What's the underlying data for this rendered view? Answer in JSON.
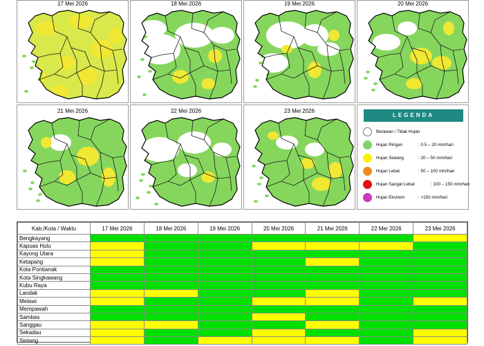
{
  "maps": [
    {
      "date": "17 Mei 2026"
    },
    {
      "date": "18 Mei 2026"
    },
    {
      "date": "19 Mei 2026"
    },
    {
      "date": "20 Mei 2026"
    },
    {
      "date": "21 Mei 2026"
    },
    {
      "date": "22 Mei 2026"
    },
    {
      "date": "23 Mei 2026"
    }
  ],
  "legend": {
    "title": "LEGENDA",
    "items": [
      {
        "label": "Berawan / Tidak Hujan",
        "range": "",
        "color": "#ffffff"
      },
      {
        "label": "Hujan Ringan",
        "range": ": 0.5 – 20 mm/hari",
        "color": "#7ed46a"
      },
      {
        "label": "Hujan Sedang",
        "range": ": 20 – 50 mm/hari",
        "color": "#ffef00"
      },
      {
        "label": "Hujan Lebat",
        "range": ": 50 – 100 mm/hari",
        "color": "#f08c1e"
      },
      {
        "label": "Hujan Sangat Lebat",
        "range": ": 100 – 150 mm/hari",
        "color": "#e01010"
      },
      {
        "label": "Hujan Ekstrem",
        "range": ": >150 mm/hari",
        "color": "#c83cb4"
      }
    ]
  },
  "table": {
    "header": [
      "Kab./Kota / Waktu",
      "17 Mei 2026",
      "18 Mei 2026",
      "19 Mei 2026",
      "20 Mei 2026",
      "21 Mei 2026",
      "22 Mei 2026",
      "23 Mei 2026"
    ],
    "rows": [
      {
        "name": "Bengkayang",
        "cells": [
          "g",
          "g",
          "g",
          "g",
          "g",
          "g",
          "y"
        ]
      },
      {
        "name": "Kapuas Hulu",
        "cells": [
          "y",
          "g",
          "g",
          "y",
          "y",
          "y",
          "g"
        ]
      },
      {
        "name": "Kayong Utara",
        "cells": [
          "y",
          "g",
          "g",
          "g",
          "g",
          "g",
          "g"
        ]
      },
      {
        "name": "Ketapang",
        "cells": [
          "y",
          "g",
          "g",
          "g",
          "y",
          "g",
          "g"
        ]
      },
      {
        "name": "Kota Pontianak",
        "cells": [
          "g",
          "g",
          "g",
          "g",
          "g",
          "g",
          "g"
        ]
      },
      {
        "name": "Kota Singkawang",
        "cells": [
          "g",
          "g",
          "g",
          "g",
          "g",
          "g",
          "g"
        ]
      },
      {
        "name": "Kubu Raya",
        "cells": [
          "g",
          "g",
          "g",
          "g",
          "g",
          "g",
          "g"
        ]
      },
      {
        "name": "Landak",
        "cells": [
          "y",
          "y",
          "g",
          "g",
          "y",
          "g",
          "g"
        ]
      },
      {
        "name": "Melawi",
        "cells": [
          "y",
          "g",
          "g",
          "y",
          "y",
          "g",
          "y"
        ]
      },
      {
        "name": "Mempawah",
        "cells": [
          "g",
          "g",
          "g",
          "g",
          "g",
          "g",
          "g"
        ]
      },
      {
        "name": "Sambas",
        "cells": [
          "g",
          "g",
          "g",
          "y",
          "g",
          "g",
          "g"
        ]
      },
      {
        "name": "Sanggau",
        "cells": [
          "y",
          "y",
          "g",
          "g",
          "y",
          "g",
          "g"
        ]
      },
      {
        "name": "Sekadau",
        "cells": [
          "y",
          "g",
          "g",
          "y",
          "g",
          "g",
          "y"
        ]
      },
      {
        "name": "Sintang",
        "cells": [
          "y",
          "g",
          "y",
          "y",
          "y",
          "g",
          "y"
        ]
      }
    ]
  }
}
